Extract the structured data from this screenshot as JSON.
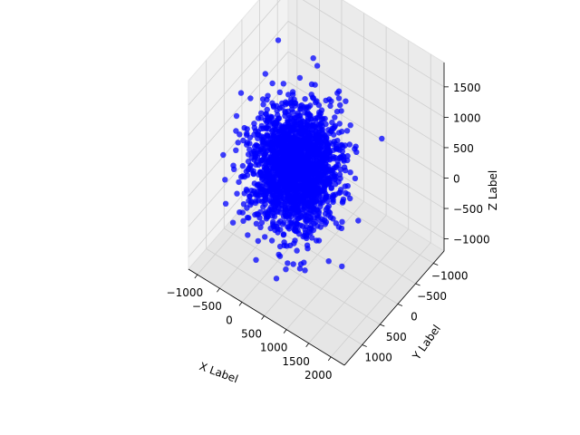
{
  "chart_data": {
    "type": "scatter3d",
    "title": "",
    "xlabel": "X Label",
    "ylabel": "Y Label",
    "zlabel": "Z Label",
    "xlim": [
      -1200,
      2300
    ],
    "ylim": [
      -1300,
      1500
    ],
    "zlim": [
      -1200,
      1900
    ],
    "xticks": [
      -1000,
      -500,
      0,
      500,
      1000,
      1500,
      2000
    ],
    "yticks": [
      -1000,
      -500,
      0,
      500,
      1000
    ],
    "zticks": [
      -1000,
      -500,
      0,
      500,
      1000,
      1500
    ],
    "grid": true,
    "legend": "none",
    "marker_color": "#0000ff",
    "series": [
      {
        "cluster": {
          "center": [
            0,
            0,
            0
          ],
          "spread": 400,
          "count": 2000
        },
        "outliers": [
          [
            1600,
            1200,
            1400
          ],
          [
            1500,
            1100,
            1300
          ],
          [
            1450,
            1150,
            1450
          ],
          [
            1650,
            1250,
            1250
          ],
          [
            1700,
            1300,
            1350
          ],
          [
            1550,
            1000,
            1200
          ],
          [
            1750,
            1350,
            1500
          ],
          [
            1600,
            1200,
            1650
          ],
          [
            800,
            700,
            1250
          ],
          [
            900,
            750,
            1300
          ],
          [
            850,
            650,
            1350
          ],
          [
            1100,
            900,
            1400
          ],
          [
            1200,
            950,
            1450
          ],
          [
            700,
            600,
            1200
          ]
        ]
      }
    ]
  }
}
